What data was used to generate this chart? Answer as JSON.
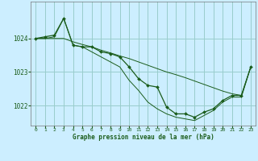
{
  "title": "Graphe pression niveau de la mer (hPa)",
  "bg_color": "#cceeff",
  "grid_color": "#99cccc",
  "line_color": "#1a5c1a",
  "marker_color": "#1a5c1a",
  "xlim": [
    -0.5,
    23.5
  ],
  "ylim": [
    1021.4,
    1025.1
  ],
  "yticks": [
    1022,
    1023,
    1024
  ],
  "xticks": [
    0,
    1,
    2,
    3,
    4,
    5,
    6,
    7,
    8,
    9,
    10,
    11,
    12,
    13,
    14,
    15,
    16,
    17,
    18,
    19,
    20,
    21,
    22,
    23
  ],
  "hours": [
    0,
    1,
    2,
    3,
    4,
    5,
    6,
    7,
    8,
    9,
    10,
    11,
    12,
    13,
    14,
    15,
    16,
    17,
    18,
    19,
    20,
    21,
    22,
    23
  ],
  "pressure": [
    1024.0,
    1024.05,
    1024.1,
    1024.6,
    1023.8,
    1023.75,
    1023.75,
    1023.6,
    1023.55,
    1023.45,
    1023.15,
    1022.8,
    1022.6,
    1022.55,
    1021.95,
    1021.75,
    1021.75,
    1021.65,
    1021.8,
    1021.9,
    1022.15,
    1022.3,
    1022.3,
    1023.15
  ],
  "envelope_upper": [
    1024.0,
    1024.0,
    1024.0,
    1024.0,
    1023.9,
    1023.82,
    1023.75,
    1023.65,
    1023.57,
    1023.48,
    1023.4,
    1023.3,
    1023.2,
    1023.1,
    1023.0,
    1022.92,
    1022.83,
    1022.73,
    1022.63,
    1022.53,
    1022.43,
    1022.35,
    1022.3,
    1023.15
  ],
  "envelope_lower": [
    1024.0,
    1024.0,
    1024.05,
    1024.6,
    1023.8,
    1023.75,
    1023.6,
    1023.45,
    1023.3,
    1023.15,
    1022.75,
    1022.45,
    1022.1,
    1021.9,
    1021.75,
    1021.65,
    1021.6,
    1021.55,
    1021.7,
    1021.85,
    1022.1,
    1022.25,
    1022.25,
    1023.15
  ]
}
